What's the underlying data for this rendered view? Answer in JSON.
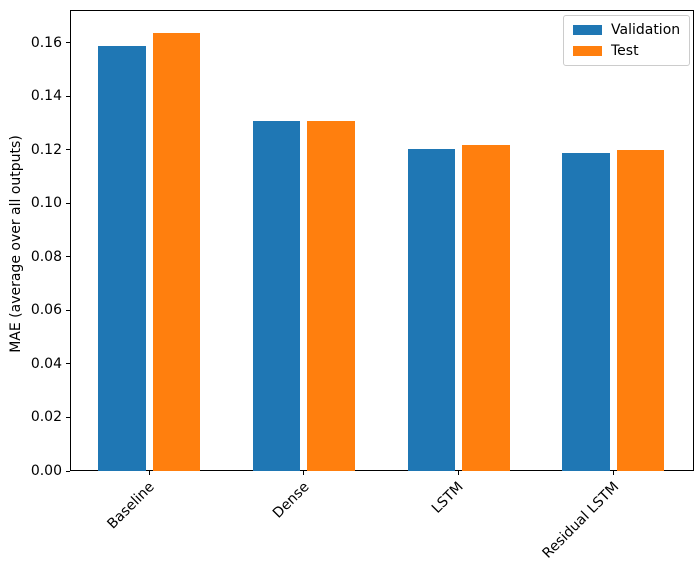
{
  "chart_data": {
    "type": "bar",
    "title": "",
    "xlabel": "",
    "ylabel": "MAE (average over all outputs)",
    "categories": [
      "Baseline",
      "Dense",
      "LSTM",
      "Residual LSTM"
    ],
    "series": [
      {
        "name": "Validation",
        "color": "#1f77b4",
        "values": [
          0.159,
          0.131,
          0.1203,
          0.1188
        ]
      },
      {
        "name": "Test",
        "color": "#ff7f0e",
        "values": [
          0.1638,
          0.1308,
          0.1218,
          0.1199
        ]
      }
    ],
    "ylim": [
      0,
      0.1723
    ],
    "yticks": [
      0.0,
      0.02,
      0.04,
      0.06,
      0.08,
      0.1,
      0.12,
      0.14,
      0.16
    ],
    "ytick_labels": [
      "0.00",
      "0.02",
      "0.04",
      "0.06",
      "0.08",
      "0.10",
      "0.12",
      "0.14",
      "0.16"
    ],
    "xtick_rotation": 45,
    "grid": false,
    "legend": {
      "position": "upper right",
      "labels": [
        "Validation",
        "Test"
      ]
    }
  },
  "colors": {
    "background": "#ffffff",
    "spine": "#000000",
    "text": "#000000",
    "legend_border": "#cccccc"
  }
}
